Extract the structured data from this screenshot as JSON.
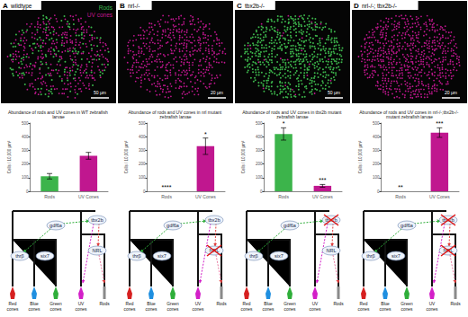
{
  "panels": [
    {
      "label": "A",
      "image_title": "wildtype",
      "image_legend": [
        {
          "label": "Rods",
          "color": "#3cb44b"
        },
        {
          "label": "UV cones",
          "color": "#c0178f"
        }
      ],
      "scale_bar": "50 µm",
      "knocked_out": []
    },
    {
      "label": "B",
      "image_title": "nrl-/-",
      "scale_bar": "20 µm",
      "knocked_out": [
        "NRL"
      ]
    },
    {
      "label": "C",
      "image_title": "tbx2b-/-",
      "scale_bar": "50 µm",
      "knocked_out": [
        "tbx2b"
      ]
    },
    {
      "label": "D",
      "image_title": "nrl-/-; tbx2b-/-",
      "scale_bar": "20 µm",
      "knocked_out": [
        "NRL",
        "tbx2b"
      ]
    }
  ],
  "lineage": {
    "genes": [
      "gdf6a",
      "tbx2b",
      "thrβ",
      "six7",
      "NRL"
    ],
    "cell_types": [
      {
        "label": "Red cones",
        "color": "#d62020"
      },
      {
        "label": "Blue cones",
        "color": "#1f8fe0"
      },
      {
        "label": "Green cones",
        "color": "#2fae3a"
      },
      {
        "label": "UV cones",
        "color": "#d31fc8"
      },
      {
        "label": "Rods",
        "color": "#8a8a8a"
      }
    ]
  },
  "chart_data": [
    {
      "type": "bar",
      "title": "Abundance of rods and UV cones in WT zebrafish larvae",
      "ylabel": "Cells / 10,000 µm²",
      "categories": [
        "Rods",
        "UV Cones"
      ],
      "values": [
        110,
        260
      ],
      "errors": [
        20,
        25
      ],
      "annotations": [
        null,
        null
      ],
      "colors": [
        "#3cb44b",
        "#c0178f"
      ],
      "ylim": [
        0,
        500
      ],
      "yticks": [
        0,
        100,
        200,
        300,
        400,
        500
      ]
    },
    {
      "type": "bar",
      "title": "Abundance of rods and UV cones in nrl mutant zebrafish larvae",
      "ylabel": "Cells / 10,000 µm²",
      "categories": [
        "Rods",
        "UV Cones"
      ],
      "values": [
        0,
        330
      ],
      "errors": [
        0,
        60
      ],
      "annotations": [
        "****",
        "*"
      ],
      "colors": [
        "#3cb44b",
        "#c0178f"
      ],
      "ylim": [
        0,
        500
      ],
      "yticks": [
        0,
        100,
        200,
        300,
        400,
        500
      ]
    },
    {
      "type": "bar",
      "title": "Abundance of rods and UV cones in tbx2b mutant zebrafish larvae",
      "ylabel": "Cells / 10,000 µm²",
      "categories": [
        "Rods",
        "UV Cones"
      ],
      "values": [
        420,
        40
      ],
      "errors": [
        45,
        10
      ],
      "annotations": [
        "*",
        "***"
      ],
      "colors": [
        "#3cb44b",
        "#c0178f"
      ],
      "ylim": [
        0,
        500
      ],
      "yticks": [
        0,
        100,
        200,
        300,
        400,
        500
      ]
    },
    {
      "type": "bar",
      "title": "Abundance of rods and UV cones in nrl-/-;tbx2b-/- mutant zebrafish larvae",
      "ylabel": "Cells / 10,000 µm²",
      "categories": [
        "Rods",
        "UV Cones"
      ],
      "values": [
        0,
        430
      ],
      "errors": [
        0,
        35
      ],
      "annotations": [
        "**",
        "***"
      ],
      "colors": [
        "#3cb44b",
        "#c0178f"
      ],
      "ylim": [
        0,
        500
      ],
      "yticks": [
        0,
        100,
        200,
        300,
        400,
        500
      ]
    }
  ]
}
